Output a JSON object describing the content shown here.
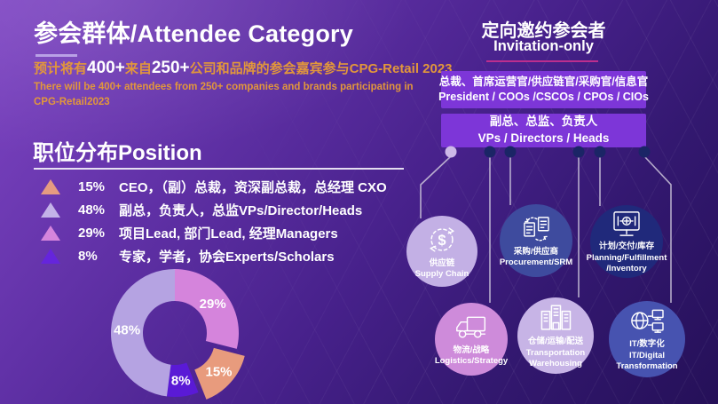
{
  "slide": {
    "title": "参会群体/Attendee Category",
    "subtitle": {
      "zh_prefix": "预计将有",
      "num1": "400+",
      "zh_mid": "来自",
      "num2": "250+",
      "zh_suffix": "公司和品牌的参会嘉宾参与",
      "brand": "CPG-Retail 2023",
      "en_line1": "There will be 400+ attendees from 250+ companies and brands participating in",
      "en_line2": "CPG-Retail2023"
    },
    "colors": {
      "accent_orange": "#E2973B",
      "box_purple": "#7D36D8",
      "underline_lavender": "#B9A1E6",
      "underline_magenta": "#BC2E8E",
      "connector_line": "#CCC6DA",
      "dot_light": "#CDB9E8",
      "dot_dark": "#1B2566",
      "background_top": "#7E45C3",
      "background_bottom": "#251058"
    }
  },
  "position_section": {
    "heading": "职位分布Position",
    "legend": [
      {
        "pct": "15%",
        "color": "#E59B81",
        "label": "CEO，（副）总裁，资深副总裁，总经理 CXO"
      },
      {
        "pct": "48%",
        "color": "#C3B2E8",
        "label": "副总，负责人，总监VPs/Director/Heads"
      },
      {
        "pct": "29%",
        "color": "#D584DC",
        "label": "项目Lead, 部门Lead, 经理Managers"
      },
      {
        "pct": "8%",
        "color": "#6525DC",
        "label": "专家，学者，协会Experts/Scholars"
      }
    ]
  },
  "chart_data": {
    "type": "pie",
    "donut": true,
    "title": "职位分布Position",
    "start_angle_deg": 0,
    "direction": "clockwise",
    "legend_position": "above",
    "slices": [
      {
        "label": "项目Lead, 部门Lead, 经理Managers",
        "pct_label": "29%",
        "value": 29,
        "color": "#D584DC",
        "exploded": false
      },
      {
        "label": "CEO，（副）总裁，资深副总裁，总经理 CXO",
        "pct_label": "15%",
        "value": 15,
        "color": "#E89B7D",
        "exploded": true
      },
      {
        "label": "专家，学者，协会Experts/Scholars",
        "pct_label": "8%",
        "value": 8,
        "color": "#5A1AD6",
        "exploded": false
      },
      {
        "label": "副总，负责人，总监VPs/Director/Heads",
        "pct_label": "48%",
        "value": 48,
        "color": "#B5A3E2",
        "exploded": false
      }
    ]
  },
  "invitation_section": {
    "title_zh": "定向邀约参会者",
    "title_en": "Invitation-only",
    "boxes": [
      {
        "line_zh": "总裁、首席运营官/供应链官/采购官/信息官",
        "line_en": "President / COOs /CSCOs / CPOs / CIOs"
      },
      {
        "line_zh": "副总、总监、负责人",
        "line_en": "VPs / Directors / Heads"
      }
    ],
    "circles": [
      {
        "icon": "supply-chain-icon",
        "color": "#C3B0E5",
        "lines": [
          "供应链",
          "Supply Chain"
        ]
      },
      {
        "icon": "procurement-icon",
        "color": "#3E4B9E",
        "lines": [
          "采购/供应商",
          "Procurement/SRM"
        ]
      },
      {
        "icon": "planning-icon",
        "color": "#20297B",
        "lines": [
          "计划/交付/库存",
          "Planning/Fulfillment",
          "/Inventory"
        ]
      },
      {
        "icon": "logistics-icon",
        "color": "#CE8BDA",
        "lines": [
          "物流/战略",
          "Logistics/Strategy"
        ]
      },
      {
        "icon": "warehouse-icon",
        "color": "#C7B4E6",
        "lines": [
          "仓储/运输/配送",
          "Transportation",
          "Warehousing"
        ]
      },
      {
        "icon": "it-icon",
        "color": "#4753B0",
        "lines": [
          "IT/数字化",
          "IT/Digital",
          "Transformation"
        ]
      }
    ]
  }
}
